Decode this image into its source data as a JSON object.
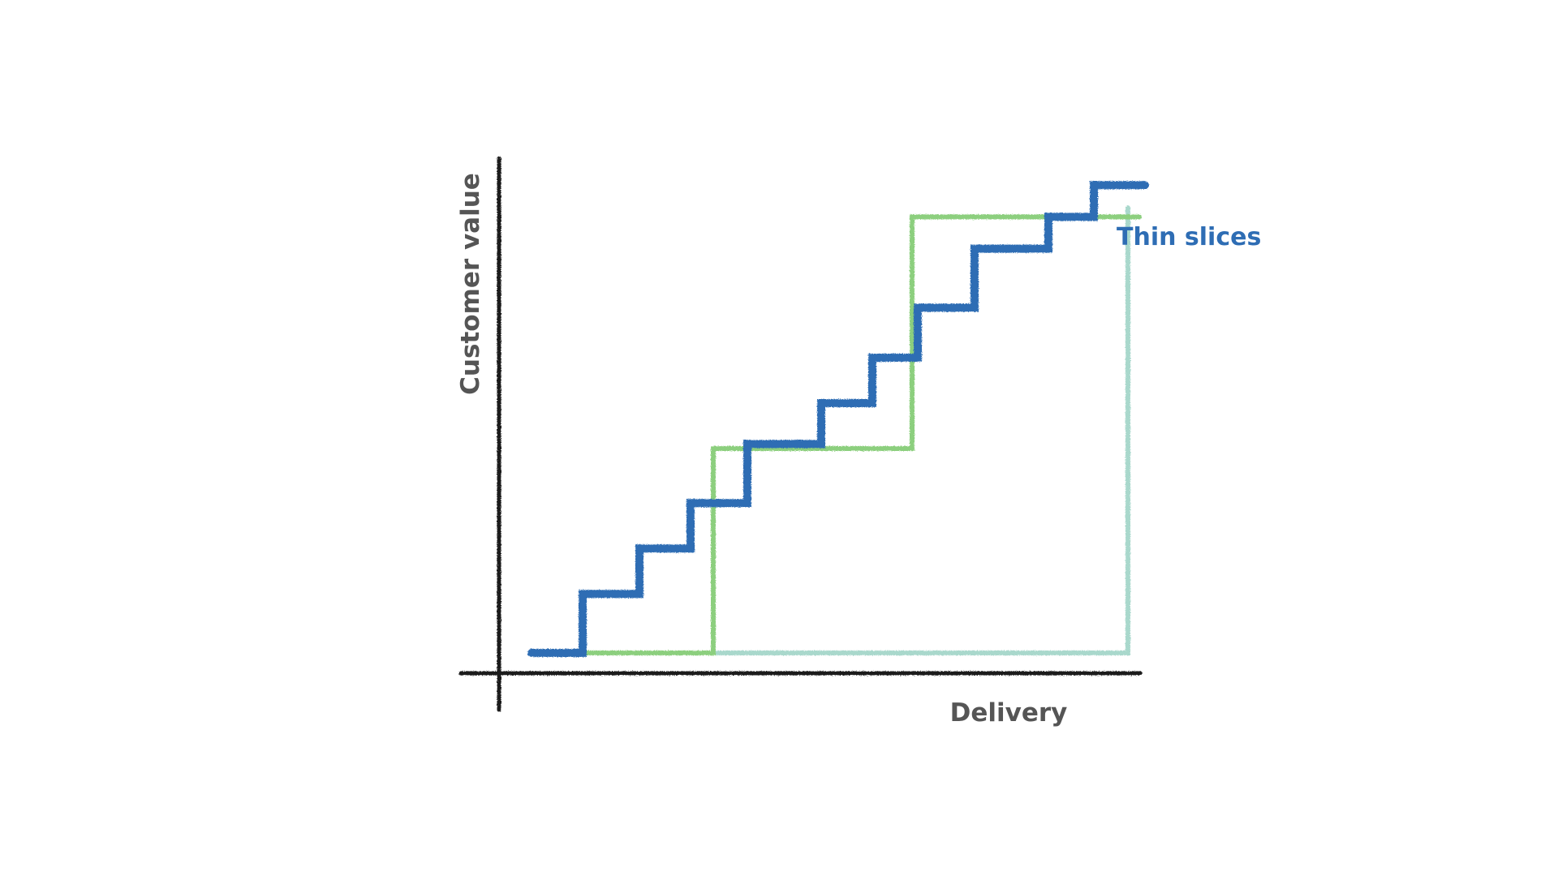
{
  "chart_data": {
    "type": "line",
    "title": "",
    "xlabel": "Delivery",
    "ylabel": "Customer value",
    "xlim": [
      0,
      10
    ],
    "ylim": [
      0,
      10
    ],
    "grid": false,
    "legend": "none",
    "axis_color": "#1a1a1a",
    "series": [
      {
        "name": "",
        "color": "#a9d8cc",
        "x": [
          0,
          10.5,
          10.5
        ],
        "y": [
          0,
          0,
          9.8
        ]
      },
      {
        "name": "",
        "color": "#8ccf7e",
        "x": [
          0,
          3.2,
          3.2,
          6.7,
          6.7,
          10.7
        ],
        "y": [
          0,
          0,
          4.5,
          4.5,
          9.6,
          9.6
        ]
      },
      {
        "name": "Thin slices",
        "color": "#2e6db4",
        "x": [
          0,
          0.9,
          0.9,
          1.9,
          1.9,
          2.8,
          2.8,
          3.8,
          3.8,
          5.1,
          5.1,
          6.0,
          6.0,
          6.8,
          6.8,
          7.8,
          7.8,
          9.1,
          9.1,
          9.9,
          9.9,
          10.8
        ],
        "y": [
          0,
          0,
          1.3,
          1.3,
          2.3,
          2.3,
          3.3,
          3.3,
          4.6,
          4.6,
          5.5,
          5.5,
          6.5,
          6.5,
          7.6,
          7.6,
          8.9,
          8.9,
          9.6,
          9.6,
          10.3,
          10.3
        ]
      }
    ]
  }
}
